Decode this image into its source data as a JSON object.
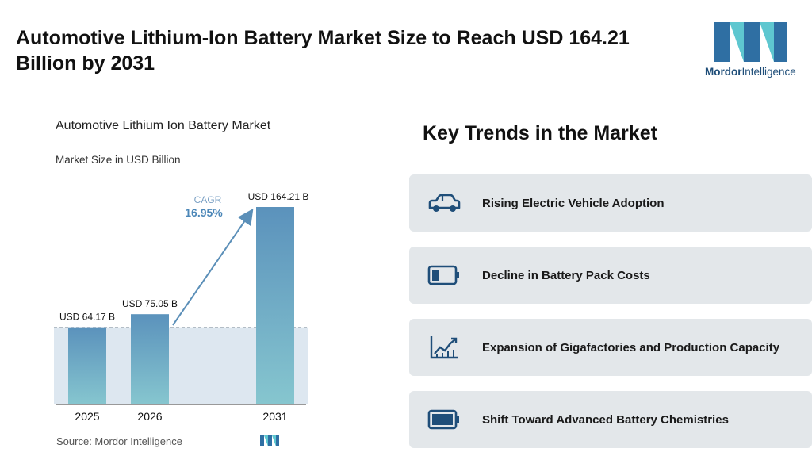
{
  "headline": "Automotive Lithium-Ion Battery Market Size to Reach USD 164.21 Billion by 2031",
  "brand": {
    "name_bold": "Mordor",
    "name_regular": "Intelligence",
    "colors": {
      "dark": "#2f6fa3",
      "light": "#5ec7d0"
    }
  },
  "chart_data": {
    "type": "bar",
    "title": "Automotive Lithium Ion Battery Market",
    "subtitle": "Market Size in USD Billion",
    "categories": [
      "2025",
      "2026",
      "2031"
    ],
    "values": [
      64.17,
      75.05,
      164.21
    ],
    "value_labels": [
      "USD 64.17 B",
      "USD 75.05 B",
      "USD 164.21 B"
    ],
    "cagr_label": "CAGR",
    "cagr_value": "16.95%",
    "ylim": [
      0,
      170
    ],
    "grid": false,
    "colors": {
      "bar_top": "#5b92bc",
      "bar_bottom": "#86c6cf",
      "band": "#dde7f0",
      "arrow": "#5b8fb8",
      "cagr": "#4c87b8"
    }
  },
  "source": "Source:  Mordor Intelligence",
  "trends": {
    "title": "Key Trends in the Market",
    "items": [
      {
        "label": "Rising Electric Vehicle Adoption",
        "icon": "car-icon"
      },
      {
        "label": "Decline in Battery Pack Costs",
        "icon": "battery-low-icon"
      },
      {
        "label": "Expansion of Gigafactories and Production Capacity",
        "icon": "growth-chart-icon"
      },
      {
        "label": "Shift Toward Advanced Battery Chemistries",
        "icon": "battery-full-icon"
      }
    ]
  }
}
